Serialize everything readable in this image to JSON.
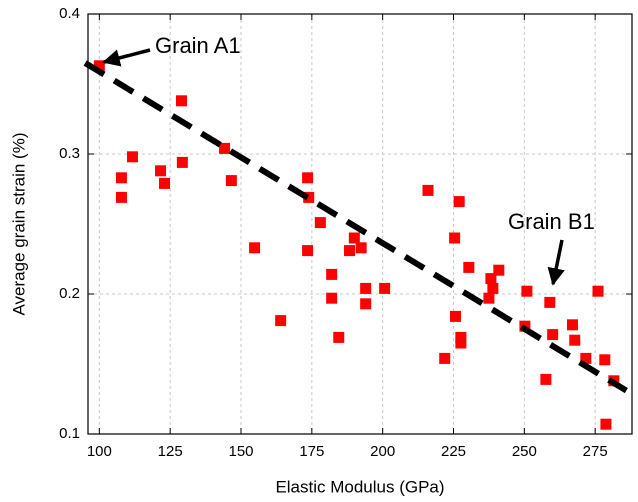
{
  "chart_data": {
    "type": "scatter",
    "xlabel": "Elastic Modulus (GPa)",
    "ylabel": "Average grain strain (%)",
    "xlim": [
      96,
      288
    ],
    "ylim": [
      0.1,
      0.4
    ],
    "xticks": [
      100,
      125,
      150,
      175,
      200,
      225,
      250,
      275
    ],
    "yticks": [
      0.1,
      0.2,
      0.3,
      0.4
    ],
    "grid": true,
    "series": [
      {
        "color": "#ff0000",
        "x": [
          100,
          107.8,
          107.8,
          111.7,
          121.6,
          123,
          129,
          129.3,
          144.2,
          146.6,
          154.8,
          164,
          173.5,
          173.9,
          173.5,
          178,
          182,
          182,
          184.5,
          188.3,
          190,
          192.4,
          194,
          194,
          200.7,
          216,
          225.4,
          227,
          225.7,
          227.6,
          227.6,
          221.9,
          230.4,
          237.5,
          238.2,
          238.9,
          241,
          250.2,
          250.9,
          259,
          260,
          267,
          267.8,
          257.6,
          271.7,
          276,
          278.4,
          278.8,
          281.6
        ],
        "values": [
          0.363,
          0.283,
          0.269,
          0.298,
          0.288,
          0.279,
          0.338,
          0.294,
          0.304,
          0.281,
          0.233,
          0.181,
          0.283,
          0.269,
          0.231,
          0.251,
          0.214,
          0.197,
          0.169,
          0.231,
          0.24,
          0.233,
          0.204,
          0.193,
          0.204,
          0.274,
          0.24,
          0.266,
          0.184,
          0.169,
          0.165,
          0.154,
          0.219,
          0.197,
          0.211,
          0.204,
          0.217,
          0.177,
          0.202,
          0.194,
          0.171,
          0.178,
          0.167,
          0.139,
          0.154,
          0.202,
          0.153,
          0.107,
          0.138
        ]
      }
    ],
    "trend_line": {
      "color": "#000000",
      "x": [
        95,
        286
      ],
      "values": [
        0.365,
        0.131
      ]
    },
    "annotations": [
      "Grain A1",
      "Grain B1"
    ]
  }
}
